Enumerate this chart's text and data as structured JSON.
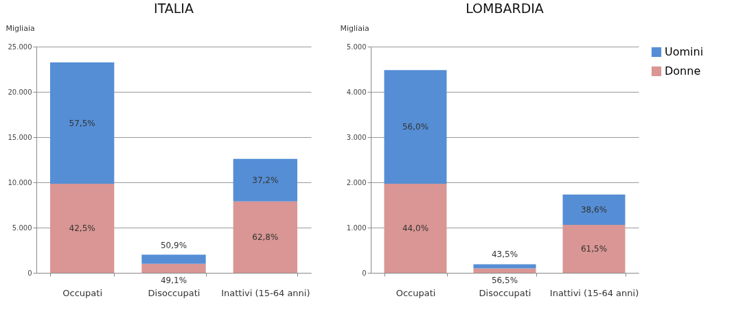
{
  "chart_data": [
    {
      "type": "bar",
      "title": "ITALIA",
      "ylabel": "Migliaia",
      "categories": [
        "Occupati",
        "Disoccupati",
        "Inattivi (15-64 anni)"
      ],
      "stacked": true,
      "grid": "y",
      "ylim": [
        0,
        25000
      ],
      "yticks": [
        {
          "value": 0,
          "label": "0"
        },
        {
          "value": 5000,
          "label": "5.000"
        },
        {
          "value": 10000,
          "label": "10.000"
        },
        {
          "value": 15000,
          "label": "15.000"
        },
        {
          "value": 20000,
          "label": "20.000"
        },
        {
          "value": 25000,
          "label": "25.000"
        }
      ],
      "series": [
        {
          "color": "#d99694",
          "values": [
            9850,
            1000,
            7900
          ]
        },
        {
          "color": "#558ed5",
          "values": [
            13400,
            1000,
            4700
          ]
        }
      ],
      "annotations": [
        "42,5%",
        "57,5%",
        "49,1%",
        "50,9%",
        "62,8%",
        "37,2%"
      ]
    },
    {
      "type": "bar",
      "title": "LOMBARDIA",
      "ylabel": "Migliaia",
      "categories": [
        "Occupati",
        "Disoccupati",
        "Inattivi (15-64 anni)"
      ],
      "stacked": true,
      "legend": "right",
      "grid": "y",
      "ylim": [
        0,
        5000
      ],
      "yticks": [
        {
          "value": 0,
          "label": "0"
        },
        {
          "value": 1000,
          "label": "1.000"
        },
        {
          "value": 2000,
          "label": "2.000"
        },
        {
          "value": 3000,
          "label": "3.000"
        },
        {
          "value": 4000,
          "label": "4.000"
        },
        {
          "value": 5000,
          "label": "5.000"
        }
      ],
      "series": [
        {
          "name": "Donne",
          "color": "#d99694",
          "values": [
            1970,
            100,
            1060
          ]
        },
        {
          "name": "Uomini",
          "color": "#558ed5",
          "values": [
            2510,
            90,
            670
          ]
        }
      ],
      "annotations": [
        "44,0%",
        "56,0%",
        "56,5%",
        "43,5%",
        "61,5%",
        "38,6%"
      ]
    }
  ]
}
